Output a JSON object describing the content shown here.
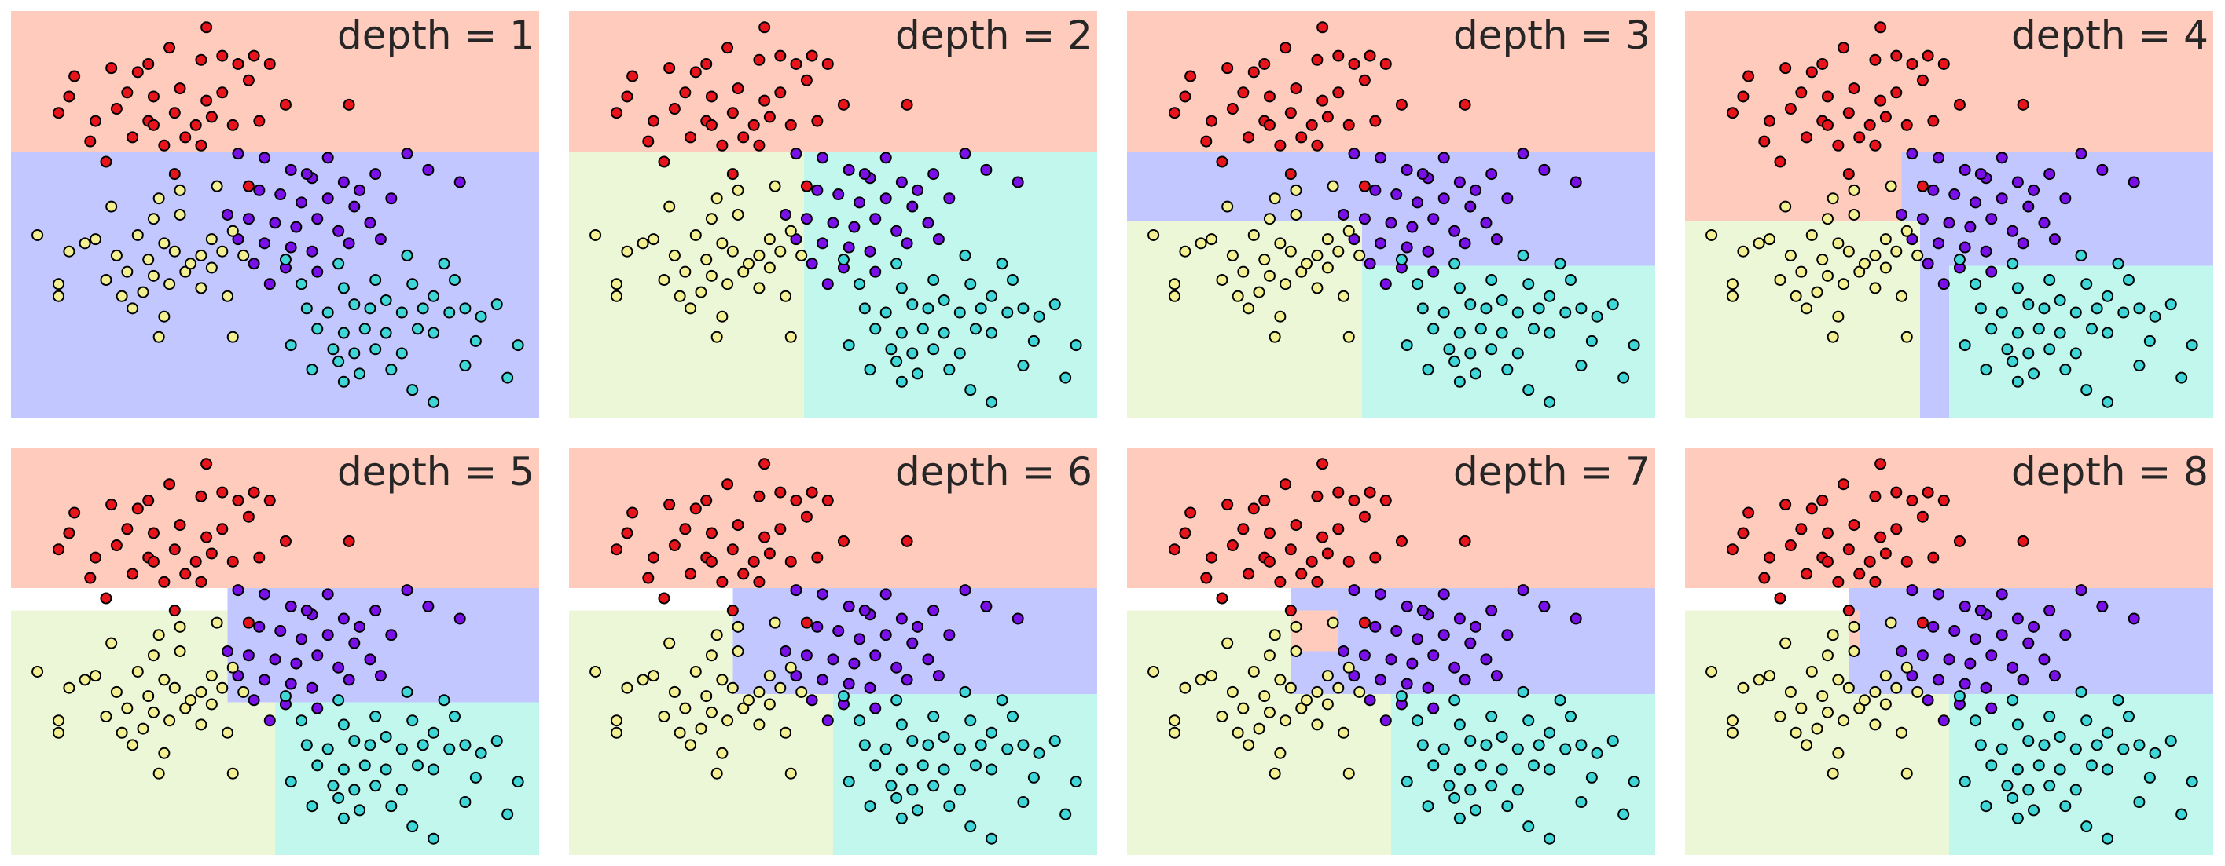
{
  "colors": {
    "red": "#ffcbbd",
    "blue": "#c2c8ff",
    "yellow": "#ecf7d8",
    "cyan": "#c2f7ee"
  },
  "point_colors": {
    "red": "#e8141b",
    "purple": "#7a10e8",
    "yellow": "#f2f090",
    "cyan": "#3fd6d8"
  },
  "chart_data": {
    "type": "scatter",
    "description_of_grid": "2 rows x 4 columns of decision-tree classification panels",
    "xlim": [
      0,
      1
    ],
    "ylim": [
      0,
      1
    ],
    "grid": false,
    "panels": [
      {
        "title": "depth = 1",
        "regions": [
          {
            "x0": 0,
            "x1": 1,
            "y0": 0.655,
            "y1": 1,
            "color": "red"
          },
          {
            "x0": 0,
            "x1": 1,
            "y0": 0,
            "y1": 0.655,
            "color": "blue"
          }
        ]
      },
      {
        "title": "depth = 2",
        "regions": [
          {
            "x0": 0,
            "x1": 1,
            "y0": 0.655,
            "y1": 1,
            "color": "red"
          },
          {
            "x0": 0,
            "x1": 0.445,
            "y0": 0,
            "y1": 0.655,
            "color": "yellow"
          },
          {
            "x0": 0.445,
            "x1": 1,
            "y0": 0,
            "y1": 0.655,
            "color": "cyan"
          }
        ]
      },
      {
        "title": "depth = 3",
        "regions": [
          {
            "x0": 0,
            "x1": 1,
            "y0": 0.655,
            "y1": 1,
            "color": "red"
          },
          {
            "x0": 0,
            "x1": 1,
            "y0": 0.485,
            "y1": 0.655,
            "color": "blue"
          },
          {
            "x0": 0.445,
            "x1": 1,
            "y0": 0.375,
            "y1": 0.485,
            "color": "blue"
          },
          {
            "x0": 0,
            "x1": 0.445,
            "y0": 0,
            "y1": 0.485,
            "color": "yellow"
          },
          {
            "x0": 0.445,
            "x1": 1,
            "y0": 0,
            "y1": 0.375,
            "color": "cyan"
          }
        ]
      },
      {
        "title": "depth = 4",
        "regions": [
          {
            "x0": 0,
            "x1": 1,
            "y0": 0.655,
            "y1": 1,
            "color": "red"
          },
          {
            "x0": 0,
            "x1": 0.41,
            "y0": 0.485,
            "y1": 0.655,
            "color": "red"
          },
          {
            "x0": 0.41,
            "x1": 1,
            "y0": 0.485,
            "y1": 0.655,
            "color": "blue"
          },
          {
            "x0": 0.41,
            "x1": 1,
            "y0": 0.375,
            "y1": 0.485,
            "color": "blue"
          },
          {
            "x0": 0,
            "x1": 0.445,
            "y0": 0,
            "y1": 0.485,
            "color": "yellow"
          },
          {
            "x0": 0.445,
            "x1": 0.5,
            "y0": 0,
            "y1": 0.375,
            "color": "blue"
          },
          {
            "x0": 0.5,
            "x1": 1,
            "y0": 0,
            "y1": 0.375,
            "color": "cyan"
          }
        ]
      },
      {
        "title": "depth = 5",
        "regions": [
          {
            "x0": 0,
            "x1": 1,
            "y0": 0.655,
            "y1": 1,
            "color": "red"
          },
          {
            "x0": 0.41,
            "x1": 1,
            "y0": 0.375,
            "y1": 0.655,
            "color": "blue"
          },
          {
            "x0": 0,
            "x1": 0.41,
            "y0": 0,
            "y1": 0.6,
            "color": "yellow"
          },
          {
            "x0": 0.41,
            "x1": 0.5,
            "y0": 0,
            "y1": 0.375,
            "color": "yellow"
          },
          {
            "x0": 0.5,
            "x1": 1,
            "y0": 0,
            "y1": 0.375,
            "color": "cyan"
          }
        ]
      },
      {
        "title": "depth = 6",
        "regions": [
          {
            "x0": 0,
            "x1": 1,
            "y0": 0.655,
            "y1": 1,
            "color": "red"
          },
          {
            "x0": 0.31,
            "x1": 1,
            "y0": 0.395,
            "y1": 0.655,
            "color": "blue"
          },
          {
            "x0": 0,
            "x1": 0.31,
            "y0": 0,
            "y1": 0.6,
            "color": "yellow"
          },
          {
            "x0": 0.31,
            "x1": 0.5,
            "y0": 0,
            "y1": 0.395,
            "color": "yellow"
          },
          {
            "x0": 0.5,
            "x1": 1,
            "y0": 0,
            "y1": 0.395,
            "color": "cyan"
          }
        ]
      },
      {
        "title": "depth = 7",
        "regions": [
          {
            "x0": 0,
            "x1": 1,
            "y0": 0.655,
            "y1": 1,
            "color": "red"
          },
          {
            "x0": 0.31,
            "x1": 1,
            "y0": 0.395,
            "y1": 0.655,
            "color": "blue"
          },
          {
            "x0": 0.31,
            "x1": 0.4,
            "y0": 0.5,
            "y1": 0.6,
            "color": "red"
          },
          {
            "x0": 0,
            "x1": 0.31,
            "y0": 0,
            "y1": 0.6,
            "color": "yellow"
          },
          {
            "x0": 0.31,
            "x1": 0.5,
            "y0": 0,
            "y1": 0.395,
            "color": "yellow"
          },
          {
            "x0": 0.5,
            "x1": 1,
            "y0": 0,
            "y1": 0.395,
            "color": "cyan"
          }
        ]
      },
      {
        "title": "depth = 8",
        "regions": [
          {
            "x0": 0,
            "x1": 1,
            "y0": 0.655,
            "y1": 1,
            "color": "red"
          },
          {
            "x0": 0.31,
            "x1": 1,
            "y0": 0.395,
            "y1": 0.655,
            "color": "blue"
          },
          {
            "x0": 0.31,
            "x1": 0.33,
            "y0": 0.5,
            "y1": 0.6,
            "color": "red"
          },
          {
            "x0": 0,
            "x1": 0.31,
            "y0": 0,
            "y1": 0.6,
            "color": "yellow"
          },
          {
            "x0": 0.31,
            "x1": 0.5,
            "y0": 0,
            "y1": 0.395,
            "color": "yellow"
          },
          {
            "x0": 0.5,
            "x1": 1,
            "y0": 0,
            "y1": 0.395,
            "color": "cyan"
          }
        ]
      }
    ],
    "points": [
      {
        "x": 0.37,
        "y": 0.96,
        "c": "red"
      },
      {
        "x": 0.3,
        "y": 0.91,
        "c": "red"
      },
      {
        "x": 0.36,
        "y": 0.88,
        "c": "red"
      },
      {
        "x": 0.4,
        "y": 0.89,
        "c": "red"
      },
      {
        "x": 0.46,
        "y": 0.89,
        "c": "red"
      },
      {
        "x": 0.26,
        "y": 0.87,
        "c": "red"
      },
      {
        "x": 0.12,
        "y": 0.84,
        "c": "red"
      },
      {
        "x": 0.19,
        "y": 0.86,
        "c": "red"
      },
      {
        "x": 0.24,
        "y": 0.85,
        "c": "red"
      },
      {
        "x": 0.43,
        "y": 0.87,
        "c": "red"
      },
      {
        "x": 0.49,
        "y": 0.87,
        "c": "red"
      },
      {
        "x": 0.11,
        "y": 0.79,
        "c": "red"
      },
      {
        "x": 0.22,
        "y": 0.8,
        "c": "red"
      },
      {
        "x": 0.27,
        "y": 0.79,
        "c": "red"
      },
      {
        "x": 0.32,
        "y": 0.81,
        "c": "red"
      },
      {
        "x": 0.37,
        "y": 0.78,
        "c": "red"
      },
      {
        "x": 0.4,
        "y": 0.8,
        "c": "red"
      },
      {
        "x": 0.45,
        "y": 0.83,
        "c": "red"
      },
      {
        "x": 0.52,
        "y": 0.77,
        "c": "red"
      },
      {
        "x": 0.64,
        "y": 0.77,
        "c": "red"
      },
      {
        "x": 0.16,
        "y": 0.73,
        "c": "red"
      },
      {
        "x": 0.2,
        "y": 0.76,
        "c": "red"
      },
      {
        "x": 0.26,
        "y": 0.73,
        "c": "red"
      },
      {
        "x": 0.31,
        "y": 0.75,
        "c": "red"
      },
      {
        "x": 0.35,
        "y": 0.72,
        "c": "red"
      },
      {
        "x": 0.38,
        "y": 0.74,
        "c": "red"
      },
      {
        "x": 0.42,
        "y": 0.72,
        "c": "red"
      },
      {
        "x": 0.47,
        "y": 0.73,
        "c": "red"
      },
      {
        "x": 0.15,
        "y": 0.68,
        "c": "red"
      },
      {
        "x": 0.23,
        "y": 0.69,
        "c": "red"
      },
      {
        "x": 0.29,
        "y": 0.67,
        "c": "red"
      },
      {
        "x": 0.33,
        "y": 0.69,
        "c": "red"
      },
      {
        "x": 0.36,
        "y": 0.67,
        "c": "red"
      },
      {
        "x": 0.18,
        "y": 0.63,
        "c": "red"
      },
      {
        "x": 0.31,
        "y": 0.6,
        "c": "red"
      },
      {
        "x": 0.45,
        "y": 0.57,
        "c": "red"
      },
      {
        "x": 0.27,
        "y": 0.72,
        "c": "red"
      },
      {
        "x": 0.09,
        "y": 0.75,
        "c": "red"
      },
      {
        "x": 0.43,
        "y": 0.65,
        "c": "purple"
      },
      {
        "x": 0.48,
        "y": 0.64,
        "c": "purple"
      },
      {
        "x": 0.6,
        "y": 0.64,
        "c": "purple"
      },
      {
        "x": 0.75,
        "y": 0.65,
        "c": "purple"
      },
      {
        "x": 0.53,
        "y": 0.61,
        "c": "purple"
      },
      {
        "x": 0.57,
        "y": 0.59,
        "c": "purple"
      },
      {
        "x": 0.63,
        "y": 0.58,
        "c": "purple"
      },
      {
        "x": 0.69,
        "y": 0.6,
        "c": "purple"
      },
      {
        "x": 0.79,
        "y": 0.61,
        "c": "purple"
      },
      {
        "x": 0.85,
        "y": 0.58,
        "c": "purple"
      },
      {
        "x": 0.47,
        "y": 0.56,
        "c": "purple"
      },
      {
        "x": 0.51,
        "y": 0.55,
        "c": "purple"
      },
      {
        "x": 0.55,
        "y": 0.53,
        "c": "purple"
      },
      {
        "x": 0.6,
        "y": 0.54,
        "c": "purple"
      },
      {
        "x": 0.65,
        "y": 0.52,
        "c": "purple"
      },
      {
        "x": 0.72,
        "y": 0.54,
        "c": "purple"
      },
      {
        "x": 0.41,
        "y": 0.5,
        "c": "purple"
      },
      {
        "x": 0.45,
        "y": 0.49,
        "c": "purple"
      },
      {
        "x": 0.5,
        "y": 0.48,
        "c": "purple"
      },
      {
        "x": 0.54,
        "y": 0.47,
        "c": "purple"
      },
      {
        "x": 0.58,
        "y": 0.49,
        "c": "purple"
      },
      {
        "x": 0.62,
        "y": 0.46,
        "c": "purple"
      },
      {
        "x": 0.68,
        "y": 0.48,
        "c": "purple"
      },
      {
        "x": 0.43,
        "y": 0.44,
        "c": "purple"
      },
      {
        "x": 0.48,
        "y": 0.43,
        "c": "purple"
      },
      {
        "x": 0.53,
        "y": 0.42,
        "c": "purple"
      },
      {
        "x": 0.57,
        "y": 0.41,
        "c": "purple"
      },
      {
        "x": 0.64,
        "y": 0.43,
        "c": "purple"
      },
      {
        "x": 0.7,
        "y": 0.44,
        "c": "purple"
      },
      {
        "x": 0.46,
        "y": 0.38,
        "c": "purple"
      },
      {
        "x": 0.52,
        "y": 0.37,
        "c": "purple"
      },
      {
        "x": 0.58,
        "y": 0.36,
        "c": "purple"
      },
      {
        "x": 0.49,
        "y": 0.33,
        "c": "purple"
      },
      {
        "x": 0.66,
        "y": 0.56,
        "c": "purple"
      },
      {
        "x": 0.56,
        "y": 0.6,
        "c": "purple"
      },
      {
        "x": 0.32,
        "y": 0.56,
        "c": "yellow"
      },
      {
        "x": 0.39,
        "y": 0.57,
        "c": "yellow"
      },
      {
        "x": 0.28,
        "y": 0.54,
        "c": "yellow"
      },
      {
        "x": 0.19,
        "y": 0.52,
        "c": "yellow"
      },
      {
        "x": 0.27,
        "y": 0.49,
        "c": "yellow"
      },
      {
        "x": 0.32,
        "y": 0.5,
        "c": "yellow"
      },
      {
        "x": 0.05,
        "y": 0.45,
        "c": "yellow"
      },
      {
        "x": 0.14,
        "y": 0.43,
        "c": "yellow"
      },
      {
        "x": 0.16,
        "y": 0.44,
        "c": "yellow"
      },
      {
        "x": 0.24,
        "y": 0.45,
        "c": "yellow"
      },
      {
        "x": 0.29,
        "y": 0.43,
        "c": "yellow"
      },
      {
        "x": 0.38,
        "y": 0.44,
        "c": "yellow"
      },
      {
        "x": 0.42,
        "y": 0.46,
        "c": "yellow"
      },
      {
        "x": 0.11,
        "y": 0.41,
        "c": "yellow"
      },
      {
        "x": 0.2,
        "y": 0.4,
        "c": "yellow"
      },
      {
        "x": 0.26,
        "y": 0.39,
        "c": "yellow"
      },
      {
        "x": 0.31,
        "y": 0.41,
        "c": "yellow"
      },
      {
        "x": 0.36,
        "y": 0.4,
        "c": "yellow"
      },
      {
        "x": 0.4,
        "y": 0.41,
        "c": "yellow"
      },
      {
        "x": 0.44,
        "y": 0.4,
        "c": "yellow"
      },
      {
        "x": 0.22,
        "y": 0.36,
        "c": "yellow"
      },
      {
        "x": 0.27,
        "y": 0.35,
        "c": "yellow"
      },
      {
        "x": 0.33,
        "y": 0.36,
        "c": "yellow"
      },
      {
        "x": 0.38,
        "y": 0.37,
        "c": "yellow"
      },
      {
        "x": 0.09,
        "y": 0.33,
        "c": "yellow"
      },
      {
        "x": 0.18,
        "y": 0.34,
        "c": "yellow"
      },
      {
        "x": 0.25,
        "y": 0.31,
        "c": "yellow"
      },
      {
        "x": 0.3,
        "y": 0.33,
        "c": "yellow"
      },
      {
        "x": 0.36,
        "y": 0.32,
        "c": "yellow"
      },
      {
        "x": 0.41,
        "y": 0.3,
        "c": "yellow"
      },
      {
        "x": 0.21,
        "y": 0.3,
        "c": "yellow"
      },
      {
        "x": 0.23,
        "y": 0.27,
        "c": "yellow"
      },
      {
        "x": 0.29,
        "y": 0.25,
        "c": "yellow"
      },
      {
        "x": 0.28,
        "y": 0.2,
        "c": "yellow"
      },
      {
        "x": 0.42,
        "y": 0.2,
        "c": "yellow"
      },
      {
        "x": 0.09,
        "y": 0.3,
        "c": "yellow"
      },
      {
        "x": 0.34,
        "y": 0.38,
        "c": "yellow"
      },
      {
        "x": 0.52,
        "y": 0.39,
        "c": "cyan"
      },
      {
        "x": 0.62,
        "y": 0.38,
        "c": "cyan"
      },
      {
        "x": 0.75,
        "y": 0.4,
        "c": "cyan"
      },
      {
        "x": 0.82,
        "y": 0.38,
        "c": "cyan"
      },
      {
        "x": 0.55,
        "y": 0.33,
        "c": "cyan"
      },
      {
        "x": 0.63,
        "y": 0.32,
        "c": "cyan"
      },
      {
        "x": 0.69,
        "y": 0.34,
        "c": "cyan"
      },
      {
        "x": 0.76,
        "y": 0.33,
        "c": "cyan"
      },
      {
        "x": 0.8,
        "y": 0.3,
        "c": "cyan"
      },
      {
        "x": 0.84,
        "y": 0.34,
        "c": "cyan"
      },
      {
        "x": 0.92,
        "y": 0.28,
        "c": "cyan"
      },
      {
        "x": 0.56,
        "y": 0.27,
        "c": "cyan"
      },
      {
        "x": 0.6,
        "y": 0.26,
        "c": "cyan"
      },
      {
        "x": 0.65,
        "y": 0.28,
        "c": "cyan"
      },
      {
        "x": 0.68,
        "y": 0.27,
        "c": "cyan"
      },
      {
        "x": 0.71,
        "y": 0.29,
        "c": "cyan"
      },
      {
        "x": 0.74,
        "y": 0.26,
        "c": "cyan"
      },
      {
        "x": 0.78,
        "y": 0.27,
        "c": "cyan"
      },
      {
        "x": 0.83,
        "y": 0.26,
        "c": "cyan"
      },
      {
        "x": 0.86,
        "y": 0.27,
        "c": "cyan"
      },
      {
        "x": 0.89,
        "y": 0.25,
        "c": "cyan"
      },
      {
        "x": 0.58,
        "y": 0.22,
        "c": "cyan"
      },
      {
        "x": 0.63,
        "y": 0.21,
        "c": "cyan"
      },
      {
        "x": 0.67,
        "y": 0.22,
        "c": "cyan"
      },
      {
        "x": 0.71,
        "y": 0.21,
        "c": "cyan"
      },
      {
        "x": 0.77,
        "y": 0.22,
        "c": "cyan"
      },
      {
        "x": 0.8,
        "y": 0.21,
        "c": "cyan"
      },
      {
        "x": 0.53,
        "y": 0.18,
        "c": "cyan"
      },
      {
        "x": 0.61,
        "y": 0.17,
        "c": "cyan"
      },
      {
        "x": 0.65,
        "y": 0.16,
        "c": "cyan"
      },
      {
        "x": 0.69,
        "y": 0.17,
        "c": "cyan"
      },
      {
        "x": 0.74,
        "y": 0.16,
        "c": "cyan"
      },
      {
        "x": 0.88,
        "y": 0.19,
        "c": "cyan"
      },
      {
        "x": 0.57,
        "y": 0.12,
        "c": "cyan"
      },
      {
        "x": 0.62,
        "y": 0.14,
        "c": "cyan"
      },
      {
        "x": 0.66,
        "y": 0.11,
        "c": "cyan"
      },
      {
        "x": 0.72,
        "y": 0.12,
        "c": "cyan"
      },
      {
        "x": 0.86,
        "y": 0.13,
        "c": "cyan"
      },
      {
        "x": 0.96,
        "y": 0.18,
        "c": "cyan"
      },
      {
        "x": 0.63,
        "y": 0.09,
        "c": "cyan"
      },
      {
        "x": 0.76,
        "y": 0.07,
        "c": "cyan"
      },
      {
        "x": 0.94,
        "y": 0.1,
        "c": "cyan"
      },
      {
        "x": 0.8,
        "y": 0.04,
        "c": "cyan"
      }
    ]
  }
}
